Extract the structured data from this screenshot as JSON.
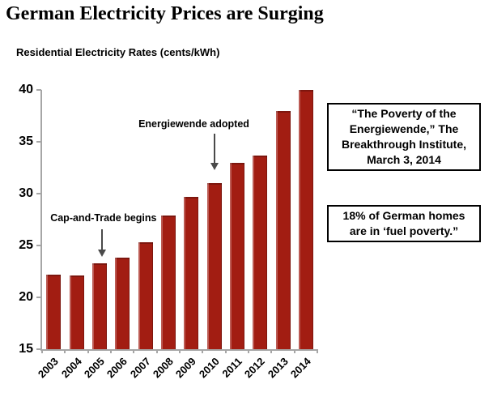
{
  "page": {
    "title": "German Electricity Prices are Surging"
  },
  "chart": {
    "subtitle": "Residential Electricity Rates (cents/kWh)"
  },
  "chart_data": {
    "type": "bar",
    "title": "Residential Electricity Rates (cents/kWh)",
    "categories": [
      "2003",
      "2004",
      "2005",
      "2006",
      "2007",
      "2008",
      "2009",
      "2010",
      "2011",
      "2012",
      "2013",
      "2014"
    ],
    "values": [
      22.2,
      22.1,
      23.3,
      23.8,
      25.3,
      27.9,
      29.7,
      31.0,
      33.0,
      33.7,
      38.0,
      40.0
    ],
    "ylim": [
      15,
      40
    ],
    "yticks": [
      40,
      35,
      30,
      25,
      20,
      15
    ],
    "grid": false,
    "legend": false,
    "bar_color": "#A21D12",
    "axis_color": "#A6A6A6",
    "annotation_arrow_color": "#4A4A4A",
    "annotations": [
      {
        "label": "Cap-and-Trade begins",
        "category": "2005"
      },
      {
        "label": "Energiewende adopted",
        "category": "2010"
      }
    ]
  },
  "callouts": [
    {
      "lines": [
        "“The Poverty of the",
        "Energiewende,” The",
        "Breakthrough Institute,",
        "March 3, 2014"
      ]
    },
    {
      "lines": [
        "18% of German homes",
        "are in ‘fuel poverty.”"
      ]
    }
  ]
}
